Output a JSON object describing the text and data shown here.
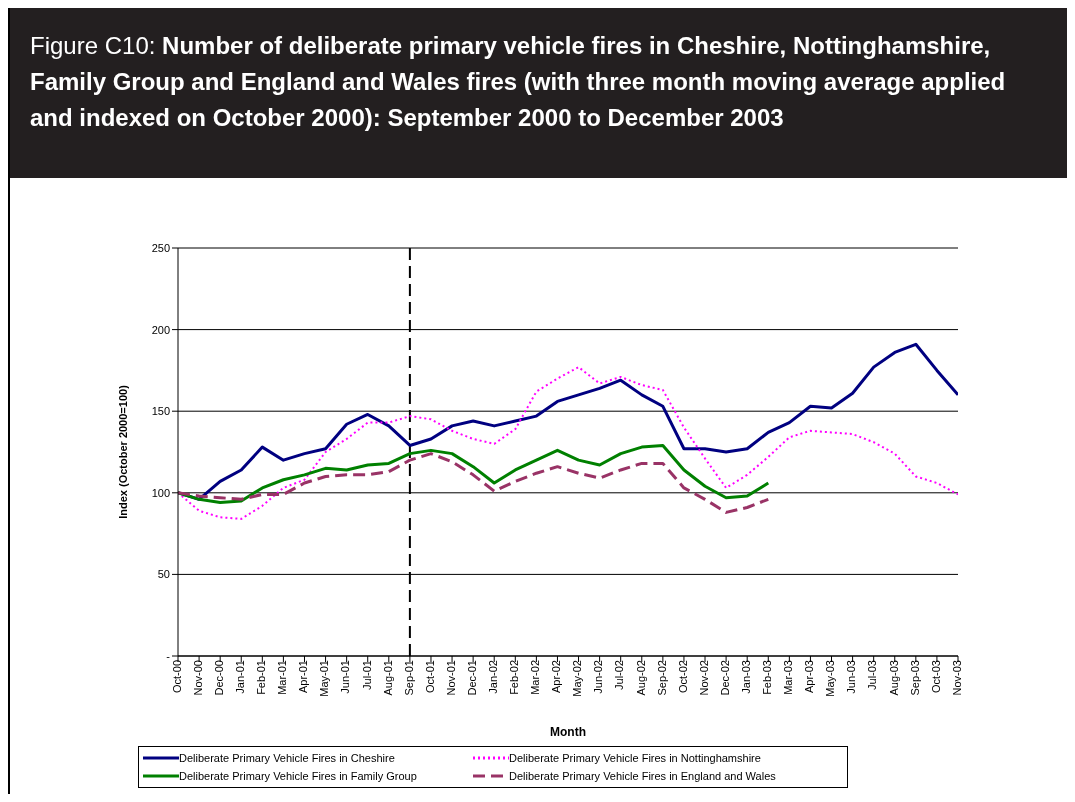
{
  "chart_data": {
    "type": "line",
    "title": "Figure C10: Number of deliberate primary vehicle fires in Cheshire, Nottinghamshire, Family Group and England and Wales fires (with three month moving average applied and indexed on October 2000): September 2000 to December 2003",
    "xlabel": "Month",
    "ylabel": "Index (October 2000=100)",
    "categories": [
      "Oct-00",
      "Nov-00",
      "Dec-00",
      "Jan-01",
      "Feb-01",
      "Mar-01",
      "Apr-01",
      "May-01",
      "Jun-01",
      "Jul-01",
      "Aug-01",
      "Sep-01",
      "Oct-01",
      "Nov-01",
      "Dec-01",
      "Jan-02",
      "Feb-02",
      "Mar-02",
      "Apr-02",
      "May-02",
      "Jun-02",
      "Jul-02",
      "Aug-02",
      "Sep-02",
      "Oct-02",
      "Nov-02",
      "Dec-02",
      "Jan-03",
      "Feb-03",
      "Mar-03",
      "Apr-03",
      "May-03",
      "Jun-03",
      "Jul-03",
      "Aug-03",
      "Sep-03",
      "Oct-03",
      "Nov-03"
    ],
    "series": [
      {
        "name": "Deliberate Primary Vehicle Fires in Cheshire",
        "color": "#000080",
        "line_style": "solid",
        "values": [
          100,
          96,
          107,
          114,
          128,
          120,
          124,
          127,
          142,
          148,
          141,
          129,
          133,
          141,
          144,
          141,
          144,
          147,
          156,
          160,
          164,
          169,
          160,
          153,
          127,
          127,
          125,
          127,
          137,
          143,
          153,
          152,
          161,
          177,
          186,
          191,
          175,
          160
        ]
      },
      {
        "name": "Deliberate Primary Vehicle Fires in Nottinghamshire",
        "color": "#ff00ff",
        "line_style": "dotted",
        "values": [
          100,
          89,
          85,
          84,
          92,
          103,
          108,
          125,
          133,
          143,
          143,
          147,
          145,
          138,
          133,
          130,
          139,
          162,
          170,
          177,
          167,
          171,
          166,
          163,
          140,
          121,
          103,
          111,
          122,
          134,
          138,
          137,
          136,
          131,
          124,
          110,
          106,
          99
        ]
      },
      {
        "name": "Deliberate Primary Vehicle Fires in Family Group",
        "color": "#008000",
        "line_style": "solid",
        "values": [
          100,
          96,
          94,
          95,
          103,
          108,
          111,
          115,
          114,
          117,
          118,
          124,
          126,
          124,
          116,
          106,
          114,
          120,
          126,
          120,
          117,
          124,
          128,
          129,
          114,
          104,
          97,
          98,
          106,
          null,
          null,
          null,
          null,
          null,
          null,
          null,
          null,
          null
        ]
      },
      {
        "name": "Deliberate Primary Vehicle Fires in England and Wales",
        "color": "#993366",
        "line_style": "dashed",
        "values": [
          100,
          98,
          97,
          96,
          99,
          99,
          106,
          110,
          111,
          111,
          113,
          120,
          124,
          119,
          111,
          101,
          107,
          112,
          116,
          112,
          109,
          114,
          118,
          118,
          103,
          96,
          88,
          91,
          96,
          null,
          null,
          null,
          null,
          null,
          null,
          null,
          null,
          null
        ]
      }
    ],
    "ylim": [
      0,
      250
    ],
    "yticks": [
      {
        "value": 0,
        "label": "-"
      },
      50,
      100,
      150,
      200,
      250
    ],
    "ref_lines": [
      {
        "axis": "x",
        "value": "Sep-01",
        "color": "#000000",
        "line_style": "dashed"
      }
    ],
    "grid": "y",
    "legend": "bottom",
    "marker": "none"
  }
}
